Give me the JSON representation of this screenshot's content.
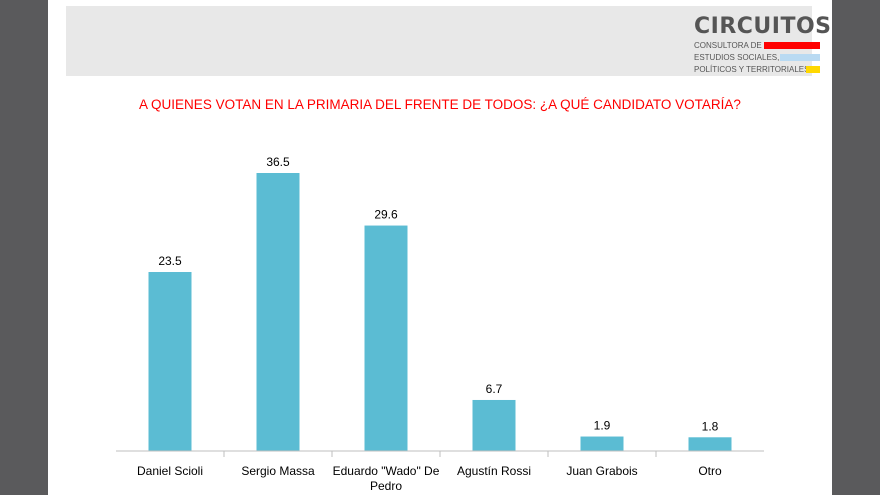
{
  "logo": {
    "name": "CIRCUITOS",
    "lines": [
      "CONSULTORA DE",
      "ESTUDIOS SOCIALES,",
      "POLÍTICOS Y TERRITORIALES"
    ],
    "colors": [
      "#ff0000",
      "#b9daf2",
      "#ffd800"
    ]
  },
  "chart_data": {
    "type": "bar",
    "title": "A QUIENES VOTAN EN LA PRIMARIA DEL FRENTE DE TODOS: ¿A QUÉ CANDIDATO VOTARÍA?",
    "categories": [
      "Daniel Scioli",
      "Sergio Massa",
      "Eduardo \"Wado\" De Pedro",
      "Agustín Rossi",
      "Juan Grabois",
      "Otro"
    ],
    "values": [
      23.5,
      36.5,
      29.6,
      6.7,
      1.9,
      1.8
    ],
    "value_labels": [
      "23.5",
      "36.5",
      "29.6",
      "6.7",
      "1.9",
      "1.8"
    ],
    "bar_color": "#5bbcd3",
    "title_color": "#ff0000",
    "grid": false,
    "legend": false
  }
}
